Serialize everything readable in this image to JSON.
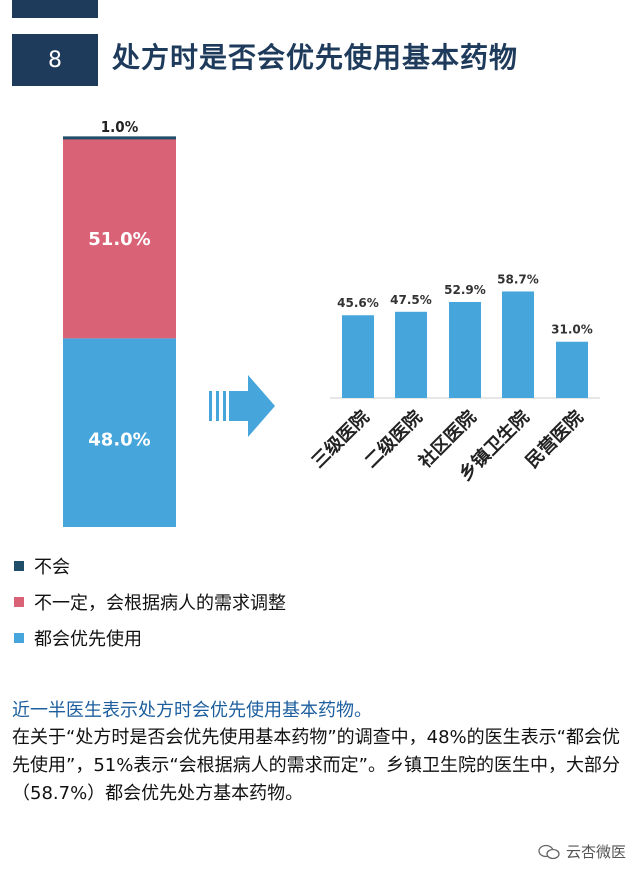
{
  "header": {
    "number": "8",
    "title": "处方时是否会优先使用基本药物"
  },
  "colors": {
    "navy": "#1f3b5c",
    "pink": "#d96277",
    "blue": "#46a6db",
    "accent_text": "#1c5e9e"
  },
  "legend": [
    {
      "label": "不会",
      "color": "#1f4e69"
    },
    {
      "label": "不一定，会根据病人的需求调整",
      "color": "#d96277"
    },
    {
      "label": "都会优先使用",
      "color": "#46a6db"
    }
  ],
  "chart_data": [
    {
      "type": "bar",
      "stacked": true,
      "categories": [
        ""
      ],
      "series": [
        {
          "name": "都会优先使用",
          "values": [
            48.0
          ],
          "label": "48.0%",
          "color": "#46a6db"
        },
        {
          "name": "不一定，会根据病人的需求调整",
          "values": [
            51.0
          ],
          "label": "51.0%",
          "color": "#d96277"
        },
        {
          "name": "不会",
          "values": [
            1.0
          ],
          "label": "1.0%",
          "color": "#1f4e69"
        }
      ],
      "ylim": [
        0,
        100
      ]
    },
    {
      "type": "bar",
      "categories": [
        "三级医院",
        "二级医院",
        "社区医院",
        "乡镇卫生院",
        "民营医院"
      ],
      "values": [
        45.6,
        47.5,
        52.9,
        58.7,
        31.0
      ],
      "labels": [
        "45.6%",
        "47.5%",
        "52.9%",
        "58.7%",
        "31.0%"
      ],
      "ylim": [
        0,
        70
      ],
      "color": "#46a6db"
    }
  ],
  "summary": {
    "headline": "近一半医生表示处方时会优先使用基本药物。",
    "body": "在关于“处方时是否会优先使用基本药物”的调查中，48%的医生表示“都会优先使用”，51%表示“会根据病人的需求而定”。乡镇卫生院的医生中，大部分（58.7%）都会优先处方基本药物。"
  },
  "watermark": {
    "text": "云杏微医",
    "icon": "wechat-icon"
  }
}
